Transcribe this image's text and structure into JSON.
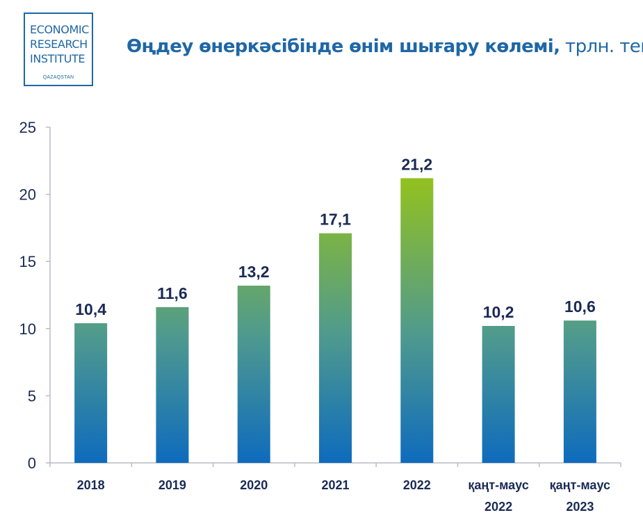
{
  "logo": {
    "lines": [
      "ECONOMIC",
      "RESEARCH",
      "INSTITUTE"
    ],
    "sub": "QAZAQSTAN"
  },
  "title": {
    "main": "Өңдеу өнеркәсібінде өнім шығару көлемі,",
    "unit": " трлн. тенге"
  },
  "colors": {
    "brand": "#1f67a6",
    "bar_top_green": "#93c11f",
    "bar_bottom_blue": "#0e6bbd",
    "text_dark": "#1a2a55",
    "axis": "#b8bcc4"
  },
  "chart_data": {
    "type": "bar",
    "categories": [
      "2018",
      "2019",
      "2020",
      "2021",
      "2022",
      "қаңт-маус 2022",
      "қаңт-маус 2023"
    ],
    "values": [
      10.4,
      11.6,
      13.2,
      17.1,
      21.2,
      10.2,
      10.6
    ],
    "value_labels": [
      "10,4",
      "11,6",
      "13,2",
      "17,1",
      "21,2",
      "10,2",
      "10,6"
    ],
    "title": "Өңдеу өнеркәсібінде өнім шығару көлемі, трлн. тенге",
    "ylim": [
      0,
      25
    ],
    "yticks": [
      0,
      5,
      10,
      15,
      20,
      25
    ],
    "grid": false,
    "legend": "none"
  }
}
